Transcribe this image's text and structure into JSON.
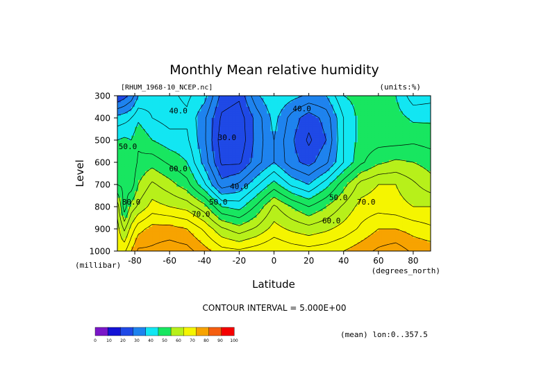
{
  "chart_data": {
    "type": "heatmap",
    "title": "Monthly Mean relative humidity",
    "file_label": "[RHUM_1968-10_NCEP.nc]",
    "units_label": "(units:%)",
    "xlabel": "Latitude",
    "x_units": "(degrees_north)",
    "ylabel": "Level",
    "y_units": "(millibar)",
    "xlim": [
      -90,
      90
    ],
    "ylim": [
      1000,
      300
    ],
    "x_ticks": [
      -80,
      -60,
      -40,
      -20,
      0,
      20,
      40,
      60,
      80
    ],
    "x_tick_labels": [
      "-80",
      "-60",
      "-40",
      "-20",
      "0",
      "20",
      "40",
      "60",
      "80"
    ],
    "y_ticks": [
      300,
      400,
      500,
      600,
      700,
      800,
      900,
      1000
    ],
    "y_tick_labels": [
      "300",
      "400",
      "500",
      "600",
      "700",
      "800",
      "900",
      "1000"
    ],
    "contour_interval_text": "CONTOUR INTERVAL = 5.000E+00",
    "mean_note": "(mean) lon:0..357.5",
    "contour_labels": [
      {
        "text": "40.0",
        "lat": -55,
        "lev": 380
      },
      {
        "text": "30.0",
        "lat": -27,
        "lev": 500
      },
      {
        "text": "40.0",
        "lat": 16,
        "lev": 370
      },
      {
        "text": "50.0",
        "lat": -84,
        "lev": 540
      },
      {
        "text": "60.0",
        "lat": -55,
        "lev": 640
      },
      {
        "text": "40.0",
        "lat": -20,
        "lev": 720
      },
      {
        "text": "50.0",
        "lat": -32,
        "lev": 790
      },
      {
        "text": "70.0",
        "lat": -42,
        "lev": 845
      },
      {
        "text": "50.0",
        "lat": 37,
        "lev": 770
      },
      {
        "text": "70.0",
        "lat": 53,
        "lev": 790
      },
      {
        "text": "60.0",
        "lat": 33,
        "lev": 875
      },
      {
        "text": "80.0",
        "lat": -82,
        "lev": 790
      }
    ],
    "color_scale": {
      "levels": [
        0,
        10,
        20,
        30,
        40,
        50,
        60,
        70,
        80,
        90,
        100
      ],
      "level_labels": [
        "0",
        "10",
        "20",
        "30",
        "40",
        "50",
        "60",
        "70",
        "80",
        "90",
        "100"
      ],
      "colors": [
        "#7a16c8",
        "#1412d6",
        "#1f49e6",
        "#1e83ee",
        "#12e6f2",
        "#18e660",
        "#b7f01a",
        "#f5f500",
        "#f7a300",
        "#f55e10",
        "#f50000"
      ]
    },
    "field_anchors": {
      "lats": [
        -90,
        -86,
        -82,
        -78,
        -70,
        -60,
        -50,
        -40,
        -30,
        -20,
        -10,
        0,
        10,
        20,
        30,
        40,
        50,
        60,
        70,
        80,
        90
      ],
      "levels": [
        300,
        400,
        500,
        600,
        700,
        800,
        900,
        1000
      ],
      "values": [
        [
          25,
          28,
          32,
          40,
          43,
          44,
          46,
          42,
          28,
          26,
          39,
          45,
          42,
          39,
          40,
          50,
          52,
          53,
          50,
          42,
          43
        ],
        [
          42,
          43,
          45,
          49,
          45,
          43,
          44,
          36,
          24,
          22,
          32,
          42,
          33,
          27,
          32,
          45,
          52,
          53,
          52,
          49,
          49
        ],
        [
          50,
          51,
          50,
          54,
          50,
          47,
          46,
          36,
          22,
          21,
          32,
          40,
          31,
          24,
          30,
          45,
          52,
          53,
          53,
          54,
          53
        ],
        [
          52,
          52,
          50,
          56,
          58,
          54,
          50,
          38,
          24,
          24,
          33,
          40,
          32,
          28,
          34,
          45,
          54,
          59,
          61,
          60,
          58
        ],
        [
          55,
          54,
          52,
          60,
          66,
          62,
          57,
          46,
          32,
          36,
          44,
          52,
          44,
          40,
          48,
          58,
          67,
          70,
          70,
          66,
          62
        ],
        [
          68,
          52,
          62,
          66,
          72,
          70,
          68,
          62,
          50,
          48,
          56,
          66,
          60,
          55,
          60,
          66,
          72,
          73,
          72,
          70,
          70
        ],
        [
          72,
          64,
          72,
          78,
          82,
          82,
          80,
          74,
          66,
          62,
          66,
          72,
          69,
          67,
          69,
          72,
          76,
          80,
          80,
          78,
          76
        ],
        [
          74,
          74,
          80,
          86,
          86,
          88,
          87,
          82,
          77,
          76,
          78,
          80,
          78,
          77,
          78,
          80,
          83,
          86,
          88,
          84,
          83
        ]
      ]
    }
  }
}
